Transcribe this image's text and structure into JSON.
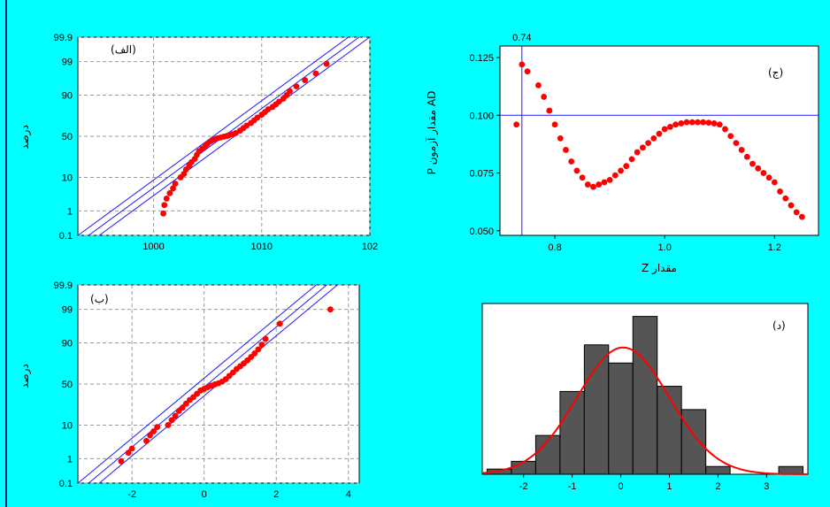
{
  "chart_data": [
    {
      "type": "scatter",
      "panel_label": "(الف)",
      "ylabel": "درصد",
      "y_scale": "normal-probability",
      "y_ticks": [
        "0.1",
        "1",
        "10",
        "50",
        "90",
        "99",
        "99.9"
      ],
      "x_ticks": [
        "1000",
        "1010",
        "102"
      ],
      "xlim": [
        993,
        1020
      ],
      "grid": true,
      "fit_line": {
        "x": [
          994,
          1019
        ],
        "y": [
          0.1,
          99.9
        ]
      },
      "series": [
        {
          "x": [
            1000.9,
            1001.0,
            1001.2,
            1001.5,
            1001.8,
            1002.0,
            1002.5,
            1002.8,
            1003.0,
            1003.3,
            1003.5,
            1003.8,
            1004.0,
            1004.2,
            1004.5,
            1004.8,
            1005.0,
            1005.3,
            1005.6,
            1005.9,
            1006.2,
            1006.5,
            1006.8,
            1007.0,
            1007.3,
            1007.6,
            1008.0,
            1008.3,
            1008.6,
            1009.0,
            1009.3,
            1009.6,
            1010.0,
            1010.3,
            1010.6,
            1011.0,
            1011.3,
            1011.6,
            1012.0,
            1012.3,
            1012.6,
            1013.2,
            1014.0,
            1015.0,
            1016.0
          ],
          "y": [
            0.8,
            1.6,
            2.6,
            3.8,
            5.2,
            7.0,
            10,
            12,
            15,
            18,
            21,
            24,
            28,
            32,
            35,
            38,
            41,
            44,
            46,
            47.5,
            48.5,
            49.5,
            50.5,
            51.5,
            52.5,
            54,
            57,
            60,
            63,
            66,
            69,
            72,
            75,
            77.5,
            80,
            82,
            84,
            86,
            88,
            90,
            92,
            94,
            96,
            97.5,
            98.8
          ]
        }
      ]
    },
    {
      "type": "line",
      "panel_label": "(ج)",
      "ylabel": "P مقدار آزمون AD",
      "xlabel": "Z مقدار",
      "x_ticks": [
        "0.8",
        "1.0",
        "1.2"
      ],
      "y_ticks": [
        "0.050",
        "0.075",
        "0.100",
        "0.125"
      ],
      "xlim": [
        0.7,
        1.28
      ],
      "ylim": [
        0.048,
        0.13
      ],
      "hline": 0.1,
      "vline": 0.74,
      "vline_label": "0.74",
      "grid": false,
      "series": [
        {
          "x": [
            0.73,
            0.74,
            0.75,
            0.77,
            0.78,
            0.79,
            0.8,
            0.81,
            0.82,
            0.83,
            0.84,
            0.85,
            0.86,
            0.87,
            0.88,
            0.89,
            0.9,
            0.91,
            0.92,
            0.93,
            0.94,
            0.95,
            0.96,
            0.97,
            0.98,
            0.99,
            1.0,
            1.01,
            1.02,
            1.03,
            1.04,
            1.05,
            1.06,
            1.07,
            1.08,
            1.09,
            1.1,
            1.11,
            1.12,
            1.13,
            1.14,
            1.15,
            1.16,
            1.17,
            1.18,
            1.19,
            1.2,
            1.21,
            1.22,
            1.23,
            1.24,
            1.25
          ],
          "y": [
            0.096,
            0.122,
            0.119,
            0.113,
            0.108,
            0.102,
            0.096,
            0.09,
            0.085,
            0.08,
            0.076,
            0.073,
            0.07,
            0.069,
            0.07,
            0.071,
            0.072,
            0.074,
            0.076,
            0.078,
            0.081,
            0.084,
            0.086,
            0.088,
            0.09,
            0.092,
            0.094,
            0.095,
            0.096,
            0.0965,
            0.097,
            0.097,
            0.097,
            0.097,
            0.0968,
            0.0965,
            0.096,
            0.094,
            0.091,
            0.088,
            0.085,
            0.082,
            0.079,
            0.077,
            0.075,
            0.073,
            0.071,
            0.067,
            0.064,
            0.061,
            0.058,
            0.056
          ]
        }
      ]
    },
    {
      "type": "scatter",
      "panel_label": "(ب)",
      "ylabel": "درصد",
      "y_scale": "normal-probability",
      "y_ticks": [
        "0.1",
        "1",
        "10",
        "50",
        "90",
        "99",
        "99.9"
      ],
      "x_ticks": [
        "-2",
        "0",
        "2",
        "4"
      ],
      "xlim": [
        -3.5,
        4.3
      ],
      "grid": true,
      "fit_line": {
        "x": [
          -3.2,
          3.4
        ],
        "y": [
          0.1,
          99.9
        ]
      },
      "series": [
        {
          "x": [
            -2.3,
            -2.1,
            -2.0,
            -1.6,
            -1.5,
            -1.4,
            -1.3,
            -1.0,
            -0.9,
            -0.8,
            -0.7,
            -0.6,
            -0.5,
            -0.4,
            -0.3,
            -0.2,
            -0.1,
            0.0,
            0.1,
            0.2,
            0.3,
            0.4,
            0.5,
            0.6,
            0.7,
            0.8,
            0.9,
            1.0,
            1.1,
            1.2,
            1.3,
            1.4,
            1.5,
            1.6,
            1.7,
            2.1,
            3.5
          ],
          "y": [
            0.8,
            1.6,
            2.2,
            3.8,
            5.5,
            7,
            9,
            10,
            13,
            16,
            20,
            23,
            27,
            31,
            34,
            38,
            42,
            44,
            46,
            48,
            49.5,
            51,
            53,
            56,
            60,
            64,
            68,
            71,
            74,
            77,
            80,
            83,
            86,
            89,
            92,
            97,
            99
          ]
        }
      ]
    },
    {
      "type": "bar",
      "panel_label": "(د)",
      "x_ticks": [
        "-2",
        "-1",
        "0",
        "1",
        "2",
        "3"
      ],
      "xlim": [
        -2.85,
        3.85
      ],
      "bin_edges": [
        -2.75,
        -2.25,
        -1.75,
        -1.25,
        -0.75,
        -0.25,
        0.25,
        0.75,
        1.25,
        1.75,
        2.25,
        2.75,
        3.25,
        3.75
      ],
      "values": [
        0.2,
        0.5,
        1.5,
        3.2,
        5.0,
        4.3,
        6.1,
        3.4,
        2.5,
        0.3,
        0.0,
        0.0,
        0.3
      ],
      "ylim": [
        0,
        6.6
      ],
      "overlay": "normal-curve",
      "curve_mean": 0.05,
      "curve_sd": 0.95,
      "curve_peak": 4.9
    }
  ]
}
